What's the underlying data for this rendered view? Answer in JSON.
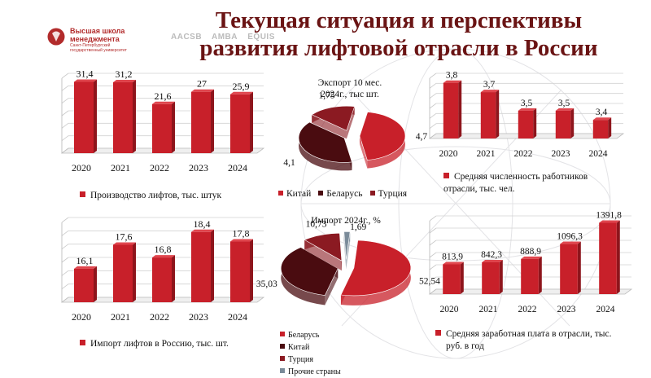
{
  "header": {
    "title_line1": "Текущая ситуация и перспективы",
    "title_line2": "развития лифтовой отрасли в России",
    "logo_line1": "Высшая школа",
    "logo_line2": "менеджмента",
    "logo_line3": "Санкт-Петербургский",
    "logo_line4": "государственный университет",
    "accreditations": [
      "AACSB",
      "AMBA",
      "EQUIS"
    ]
  },
  "colors": {
    "bar_red": "#c8202a",
    "title": "#6a1414",
    "dark_red": "#5a0f14",
    "gray_slice": "#7a8b99"
  },
  "chart_data": [
    {
      "id": "production",
      "type": "bar",
      "categories": [
        "2020",
        "2021",
        "2022",
        "2023",
        "2024"
      ],
      "values": [
        31.4,
        31.2,
        21.6,
        27,
        25.9
      ],
      "value_labels": [
        "31,4",
        "31,2",
        "21,6",
        "27",
        "25,9"
      ],
      "ylim": [
        0,
        33
      ],
      "legend": "Производство лифтов, тыс. штук"
    },
    {
      "id": "import",
      "type": "bar",
      "categories": [
        "2020",
        "2021",
        "2022",
        "2023",
        "2024"
      ],
      "values": [
        16.1,
        17.6,
        16.8,
        18.4,
        17.8
      ],
      "value_labels": [
        "16,1",
        "17,6",
        "16,8",
        "18,4",
        "17,8"
      ],
      "ylim": [
        14,
        19
      ],
      "legend": "Импорт лифтов в Россию, тыс. шт."
    },
    {
      "id": "employees",
      "type": "bar",
      "categories": [
        "2020",
        "2021",
        "2022",
        "2023",
        "2024"
      ],
      "values": [
        3.8,
        3.7,
        3.5,
        3.5,
        3.4
      ],
      "value_labels": [
        "3,8",
        "3,7",
        "3,5",
        "3,5",
        "3,4"
      ],
      "ylim": [
        3.2,
        3.85
      ],
      "legend_line1": "Средняя численность работников",
      "legend_line2": "отрасли, тыс. чел."
    },
    {
      "id": "salary",
      "type": "bar",
      "categories": [
        "2020",
        "2021",
        "2022",
        "2023",
        "2024"
      ],
      "values": [
        813.9,
        842.3,
        888.9,
        1096.3,
        1391.8
      ],
      "value_labels": [
        "813,9",
        "842,3",
        "888,9",
        "1096,3",
        "1391,8"
      ],
      "ylim": [
        400,
        1420
      ],
      "legend_line1": "Средняя заработная плата в отрасли, тыс.",
      "legend_line2": "руб. в год"
    },
    {
      "id": "export_pie",
      "type": "pie",
      "title_line1": "Экспорт 10 мес.",
      "title_line2": "2024г., тыс шт.",
      "slices": [
        {
          "name": "Китай",
          "value": 4.7,
          "label": "4,7",
          "color": "#c8202a"
        },
        {
          "name": "Беларусь",
          "value": 4.1,
          "label": "4,1",
          "color": "#4a0c10"
        },
        {
          "name": "Турция",
          "value": 1.75,
          "label": "1,75",
          "color": "#8b1a22"
        }
      ]
    },
    {
      "id": "import_pie",
      "type": "pie",
      "title": "Импорт 2024г., %",
      "slices": [
        {
          "name": "Беларусь",
          "value": 52.54,
          "label": "52,54",
          "color": "#c8202a"
        },
        {
          "name": "Китай",
          "value": 35.03,
          "label": "35,03",
          "color": "#4a0c10"
        },
        {
          "name": "Турция",
          "value": 10.73,
          "label": "10,73",
          "color": "#8b1a22"
        },
        {
          "name": "Прочие страны",
          "value": 1.69,
          "label": "1,69",
          "color": "#7a8b99"
        }
      ]
    }
  ]
}
